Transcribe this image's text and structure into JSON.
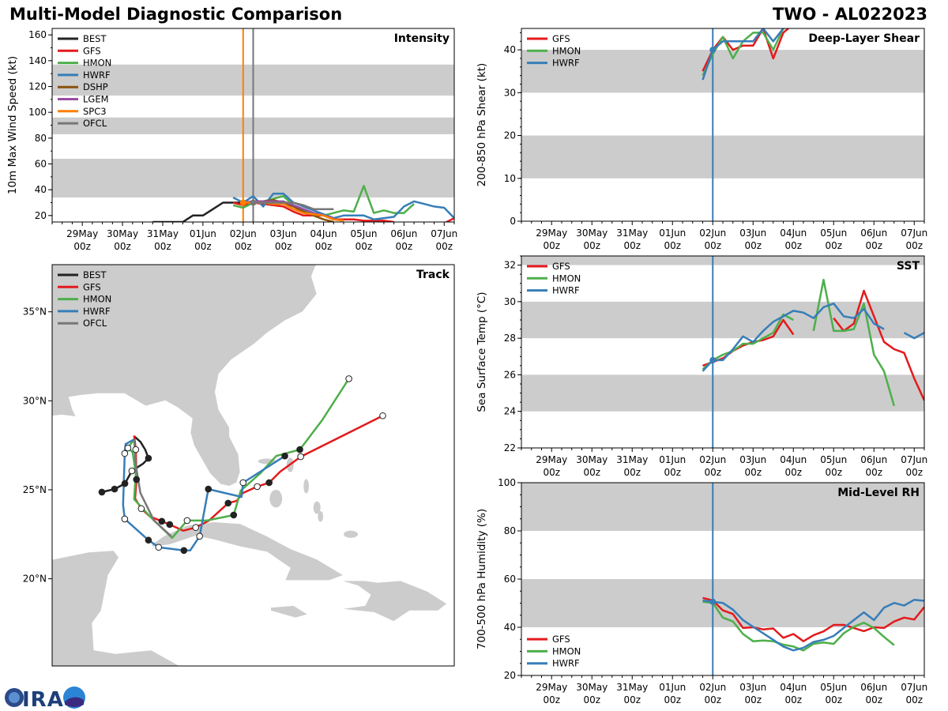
{
  "header": {
    "title": "Multi-Model Diagnostic Comparison",
    "storm": "TWO - AL022023"
  },
  "logo": {
    "text": "CIRA"
  },
  "colors": {
    "BEST": "#222222",
    "GFS": "#e41a1c",
    "HMON": "#4daf4a",
    "HWRF": "#377eb8",
    "DSHP": "#8c510a",
    "LGEM": "#984ea3",
    "SPC3": "#ff7f00",
    "OFCL": "#777777",
    "band": "#cccccc",
    "land": "#cccccc"
  },
  "time_axis": {
    "range": [
      "2023-05-28T06",
      "2023-06-07T06"
    ],
    "ticks": [
      "2023-05-29T00",
      "2023-05-30T00",
      "2023-05-31T00",
      "2023-06-01T00",
      "2023-06-02T00",
      "2023-06-03T00",
      "2023-06-04T00",
      "2023-06-05T00",
      "2023-06-06T00",
      "2023-06-07T00"
    ],
    "tick_labels": [
      [
        "29May",
        "00z"
      ],
      [
        "30May",
        "00z"
      ],
      [
        "31May",
        "00z"
      ],
      [
        "01Jun",
        "00z"
      ],
      [
        "02Jun",
        "00z"
      ],
      [
        "03Jun",
        "00z"
      ],
      [
        "04Jun",
        "00z"
      ],
      [
        "05Jun",
        "00z"
      ],
      [
        "06Jun",
        "00z"
      ],
      [
        "07Jun",
        "00z"
      ]
    ],
    "interval_hours": 6
  },
  "chart_data": [
    {
      "id": "intensity",
      "type": "line",
      "title": "Intensity",
      "ylabel": "10m Max Wind Speed (kt)",
      "ylim": [
        15,
        165
      ],
      "yticks": [
        20,
        40,
        60,
        80,
        100,
        120,
        140,
        160
      ],
      "yminor": 10,
      "bands": [
        [
          34,
          64
        ],
        [
          83,
          96
        ],
        [
          113,
          137
        ]
      ],
      "vlines": [
        {
          "time": "2023-06-02T00",
          "color": "#ff7f00"
        },
        {
          "time": "2023-06-02T06",
          "color": "#777777"
        }
      ],
      "legend": "top-left",
      "series": [
        {
          "name": "BEST",
          "start": "2023-05-30T18",
          "values": [
            15,
            15,
            15,
            15,
            20,
            20,
            25,
            30,
            30,
            30
          ]
        },
        {
          "name": "GFS",
          "start": "2023-06-01T18",
          "values": [
            30,
            28,
            30,
            29,
            28,
            27,
            23,
            20,
            20,
            20,
            17,
            17,
            17,
            16,
            16,
            16,
            15,
            null,
            null,
            null,
            null,
            14,
            18
          ]
        },
        {
          "name": "HMON",
          "start": "2023-06-01T18",
          "values": [
            28,
            26,
            30,
            31,
            33,
            35,
            28,
            24,
            22,
            20,
            22,
            24,
            23,
            43,
            22,
            24,
            22,
            22,
            29
          ]
        },
        {
          "name": "HWRF",
          "start": "2023-06-01T18",
          "values": [
            34,
            30,
            35,
            27,
            37,
            37,
            30,
            27,
            24,
            21,
            18,
            20,
            20,
            20,
            17,
            18,
            19,
            27,
            31,
            29,
            27,
            26,
            18
          ]
        },
        {
          "name": "DSHP",
          "start": "2023-06-02T00",
          "values": [
            30,
            31,
            31,
            32,
            30,
            27,
            23,
            20,
            17,
            15
          ]
        },
        {
          "name": "LGEM",
          "start": "2023-06-02T00",
          "values": [
            30,
            31,
            31,
            31,
            31,
            28,
            25,
            22,
            20,
            18
          ]
        },
        {
          "name": "SPC3",
          "start": "2023-06-02T00",
          "values": [
            30,
            30,
            30,
            29,
            29,
            25,
            22,
            21,
            20,
            17,
            16
          ],
          "dot": true
        },
        {
          "name": "OFCL",
          "start": "2023-06-02T06",
          "values": [
            30,
            30,
            30,
            30,
            30,
            28,
            25,
            25,
            25
          ],
          "dot": true
        }
      ]
    },
    {
      "id": "shear",
      "type": "line",
      "title": "Deep-Layer Shear",
      "ylabel": "200-850 hPa Shear (kt)",
      "ylim": [
        0,
        45
      ],
      "yticks": [
        0,
        10,
        20,
        30,
        40
      ],
      "yminor": 2,
      "bands": [
        [
          10,
          20
        ],
        [
          30,
          40
        ]
      ],
      "vlines": [
        {
          "time": "2023-06-02T00",
          "color": "#377eb8"
        }
      ],
      "legend": "top-left",
      "series": [
        {
          "name": "GFS",
          "start": "2023-06-01T18",
          "values": [
            35,
            40,
            43,
            40,
            41,
            41,
            45,
            38,
            44,
            46
          ]
        },
        {
          "name": "HMON",
          "start": "2023-06-01T18",
          "values": [
            34,
            39,
            43,
            38,
            42,
            44,
            44,
            40,
            45,
            46
          ]
        },
        {
          "name": "HWRF",
          "start": "2023-06-01T18",
          "values": [
            33,
            40,
            42,
            42,
            42,
            42,
            45,
            42,
            45,
            46
          ],
          "dot": true
        }
      ]
    },
    {
      "id": "sst",
      "type": "line",
      "title": "SST",
      "ylabel": "Sea Surface Temp (°C)",
      "ylim": [
        22,
        32.5
      ],
      "yticks": [
        22,
        24,
        26,
        28,
        30,
        32
      ],
      "yminor": 0.5,
      "bands": [
        [
          24,
          26
        ],
        [
          28,
          30
        ],
        [
          32,
          34
        ]
      ],
      "vlines": [
        {
          "time": "2023-06-02T00",
          "color": "#377eb8"
        }
      ],
      "legend": "top-left",
      "series": [
        {
          "name": "GFS",
          "start": "2023-06-01T18",
          "values": [
            26.5,
            26.7,
            26.9,
            27.3,
            27.6,
            27.8,
            27.9,
            28.1,
            29.0,
            28.2,
            null,
            null,
            null,
            29.1,
            28.4,
            28.8,
            30.6,
            29.2,
            27.8,
            27.4,
            27.2,
            25.8,
            24.6
          ]
        },
        {
          "name": "HMON",
          "start": "2023-06-01T18",
          "values": [
            26.3,
            26.8,
            27.1,
            27.3,
            27.7,
            27.7,
            28.0,
            28.3,
            29.3,
            29.0,
            null,
            28.4,
            31.2,
            28.4,
            28.4,
            28.5,
            29.9,
            27.1,
            26.2,
            24.3
          ]
        },
        {
          "name": "HWRF",
          "start": "2023-06-01T18",
          "values": [
            26.2,
            26.8,
            26.8,
            27.4,
            28.1,
            27.8,
            28.4,
            28.9,
            29.2,
            29.5,
            29.4,
            29.1,
            29.7,
            29.9,
            29.2,
            29.1,
            29.6,
            28.8,
            28.5,
            null,
            28.3,
            28.0,
            28.3
          ],
          "dot": true
        }
      ]
    },
    {
      "id": "rh",
      "type": "line",
      "title": "Mid-Level RH",
      "ylabel": "700-500 hPa Humidity (%)",
      "ylim": [
        20,
        100
      ],
      "yticks": [
        20,
        40,
        60,
        80,
        100
      ],
      "yminor": 5,
      "bands": [
        [
          40,
          60
        ],
        [
          80,
          100
        ]
      ],
      "vlines": [
        {
          "time": "2023-06-02T00",
          "color": "#377eb8"
        }
      ],
      "legend": "bottom-left",
      "series": [
        {
          "name": "GFS",
          "start": "2023-06-01T18",
          "values": [
            52.2,
            51.1,
            47.0,
            45.5,
            39.7,
            40.0,
            39.1,
            39.5,
            35.6,
            37.2,
            34.2,
            36.7,
            38.3,
            41.0,
            41.0,
            39.7,
            38.4,
            40.0,
            39.7,
            42.4,
            44.0,
            43.2,
            48.4
          ]
        },
        {
          "name": "HMON",
          "start": "2023-06-01T18",
          "values": [
            50.6,
            50.1,
            44.0,
            42.4,
            37.2,
            34.2,
            34.5,
            34.2,
            32.8,
            32.0,
            30.4,
            33.1,
            33.7,
            33.1,
            37.5,
            40.2,
            41.9,
            39.7,
            36.0,
            32.6
          ]
        },
        {
          "name": "HWRF",
          "start": "2023-06-01T18",
          "values": [
            51.1,
            50.6,
            50.1,
            47.3,
            43.0,
            40.2,
            37.5,
            34.8,
            32.0,
            30.4,
            31.5,
            33.9,
            34.8,
            36.4,
            39.7,
            43.0,
            46.2,
            43.0,
            48.1,
            50.1,
            49.0,
            51.4,
            51.0
          ],
          "dot": true
        }
      ]
    },
    {
      "id": "track",
      "type": "map",
      "title": "Track",
      "lon_range": [
        -90.55,
        -68.0
      ],
      "lat_range": [
        15.1,
        37.65
      ],
      "lat_ticks": [
        20,
        25,
        30,
        35
      ],
      "lat_tick_labels": [
        "20°N",
        "25°N",
        "30°N",
        "35°N"
      ],
      "legend": "top-left",
      "series": [
        {
          "name": "BEST",
          "points": [
            [
              -87.76,
              24.87,
              "filled"
            ],
            [
              -87.05,
              25.04,
              "filled"
            ],
            [
              -86.47,
              25.35,
              "filled"
            ],
            [
              -86.08,
              26.06,
              "open"
            ],
            [
              -85.46,
              26.46,
              ""
            ],
            [
              -85.15,
              26.77,
              "filled"
            ],
            [
              -85.33,
              27.26,
              ""
            ],
            [
              -85.6,
              27.7,
              ""
            ],
            [
              -85.95,
              28.01,
              ""
            ]
          ]
        },
        {
          "name": "GFS",
          "points": [
            [
              -85.95,
              28.05,
              ""
            ],
            [
              -85.86,
              27.26,
              "open"
            ],
            [
              -85.82,
              25.58,
              "filled"
            ],
            [
              -85.9,
              24.51,
              ""
            ],
            [
              -85.55,
              23.94,
              "open"
            ],
            [
              -85.06,
              23.5,
              ""
            ],
            [
              -84.4,
              23.23,
              "filled"
            ],
            [
              -83.96,
              23.05,
              "filled"
            ],
            [
              -83.2,
              22.7,
              ""
            ],
            [
              -82.5,
              22.88,
              "open"
            ],
            [
              -81.75,
              23.27,
              ""
            ],
            [
              -80.68,
              24.25,
              "filled"
            ],
            [
              -80.2,
              24.38,
              ""
            ],
            [
              -79.84,
              24.82,
              ""
            ],
            [
              -79.05,
              25.18,
              "open"
            ],
            [
              -78.38,
              25.4,
              "filled"
            ],
            [
              -77.76,
              26.02,
              ""
            ],
            [
              -76.61,
              26.86,
              "open"
            ],
            [
              -72.01,
              29.16,
              "open"
            ]
          ]
        },
        {
          "name": "HMON",
          "points": [
            [
              -85.95,
              27.83,
              ""
            ],
            [
              -86.3,
              27.35,
              "open"
            ],
            [
              -86.04,
              27.12,
              ""
            ],
            [
              -85.86,
              25.93,
              ""
            ],
            [
              -85.95,
              24.47,
              ""
            ],
            [
              -85.06,
              23.5,
              ""
            ],
            [
              -83.82,
              22.3,
              ""
            ],
            [
              -82.98,
              23.27,
              "open"
            ],
            [
              -81.88,
              23.27,
              ""
            ],
            [
              -80.37,
              23.58,
              "filled"
            ],
            [
              -79.97,
              24.96,
              ""
            ],
            [
              -78.87,
              25.93,
              ""
            ],
            [
              -77.98,
              26.9,
              ""
            ],
            [
              -76.66,
              27.26,
              "filled"
            ],
            [
              -75.42,
              28.89,
              ""
            ],
            [
              -73.91,
              31.24,
              "open"
            ]
          ]
        },
        {
          "name": "HWRF",
          "points": [
            [
              -85.95,
              27.83,
              ""
            ],
            [
              -86.43,
              27.57,
              ""
            ],
            [
              -86.48,
              27.04,
              "open"
            ],
            [
              -86.57,
              24.16,
              ""
            ],
            [
              -86.48,
              23.36,
              "open"
            ],
            [
              -85.15,
              22.17,
              "filled"
            ],
            [
              -84.58,
              21.77,
              "open"
            ],
            [
              -83.16,
              21.59,
              "filled"
            ],
            [
              -82.81,
              21.59,
              ""
            ],
            [
              -82.28,
              22.39,
              "open"
            ],
            [
              -81.79,
              25.04,
              "filled"
            ],
            [
              -79.93,
              24.6,
              ""
            ],
            [
              -79.84,
              25.4,
              "open"
            ],
            [
              -77.5,
              26.9,
              "filled"
            ]
          ]
        },
        {
          "name": "OFCL",
          "points": [
            [
              -85.95,
              27.83,
              ""
            ],
            [
              -85.86,
              26.37,
              ""
            ],
            [
              -85.6,
              24.82,
              ""
            ],
            [
              -84.84,
              23.27,
              ""
            ],
            [
              -83.87,
              22.39,
              ""
            ]
          ]
        }
      ]
    }
  ]
}
